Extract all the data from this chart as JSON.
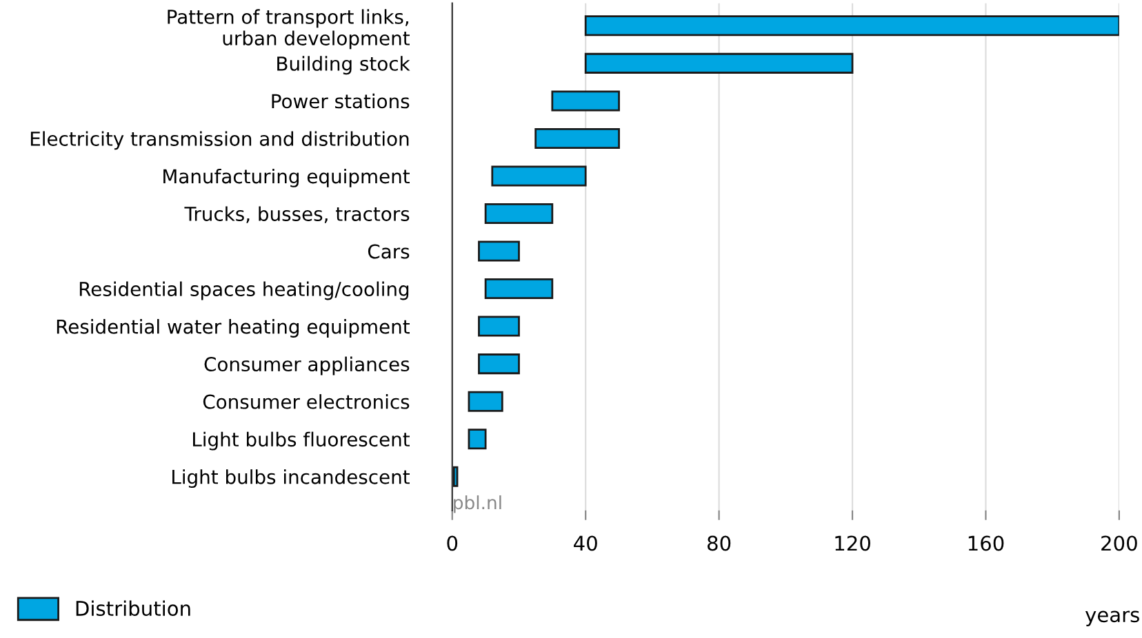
{
  "chart_data": {
    "type": "bar",
    "orientation": "horizontal",
    "categories": [
      "Pattern of transport links,\nurban development",
      "Building stock",
      "Power stations",
      "Electricity transmission and distribution",
      "Manufacturing equipment",
      "Trucks, busses, tractors",
      "Cars",
      "Residential spaces heating/cooling",
      "Residential water heating equipment",
      "Consumer appliances",
      "Consumer electronics",
      "Light bulbs fluorescent",
      "Light bulbs incandescent"
    ],
    "series": [
      {
        "name": "Distribution",
        "color": "#00a6e2",
        "base": [
          40,
          40,
          30,
          25,
          12,
          10,
          8,
          10,
          8,
          8,
          5,
          5,
          0.5
        ],
        "values": [
          160,
          80,
          20,
          25,
          28,
          20,
          12,
          20,
          12,
          12,
          10,
          5,
          1
        ]
      }
    ],
    "xlim": [
      0,
      200
    ],
    "xticks": [
      0,
      40,
      80,
      120,
      160,
      200
    ],
    "xlabel": "years",
    "grid": "x",
    "legend": "bottom left",
    "annotations": [
      "pbl.nl"
    ]
  }
}
